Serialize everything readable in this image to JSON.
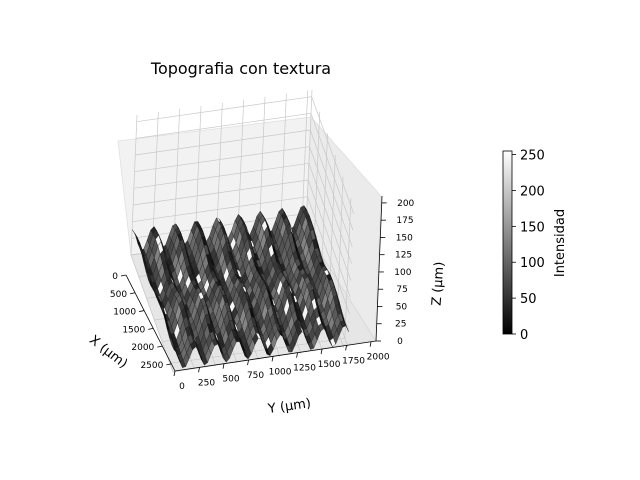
{
  "chart_data": {
    "type": "surface3d",
    "title": "Topografia con textura",
    "xlabel": "X ($\\mu$m)",
    "ylabel": "Y ($\\mu$m)",
    "zlabel": "Z ($\\mu$m)",
    "xlim": [
      0,
      2700
    ],
    "ylim": [
      0,
      2050
    ],
    "zlim": [
      0,
      210
    ],
    "x_ticks": [
      "0",
      "500",
      "1000",
      "1500",
      "2000",
      "2500"
    ],
    "y_ticks": [
      "0",
      "250",
      "500",
      "750",
      "1000",
      "1250",
      "1500",
      "1750",
      "2000"
    ],
    "z_ticks": [
      "0",
      "25",
      "50",
      "75",
      "100",
      "125",
      "150",
      "175",
      "200"
    ],
    "ridge_period_y_um": 250,
    "ridge_amplitude_um": 45,
    "surface_colormap": "gray",
    "grid": true,
    "colorbar": {
      "label": "Intensidad",
      "min": 0,
      "max": 255,
      "ticks": [
        "0",
        "50",
        "100",
        "150",
        "200",
        "250"
      ],
      "colormap": "gray"
    }
  },
  "labels": {
    "x_axis": "X (μm)",
    "y_axis": "Y (μm)",
    "z_axis": "Z (μm)"
  }
}
